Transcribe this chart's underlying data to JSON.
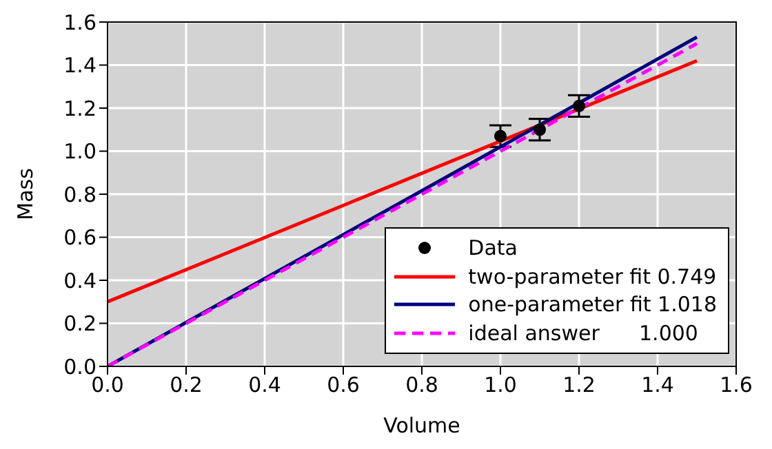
{
  "chart_data": {
    "type": "line",
    "xlabel": "Volume",
    "ylabel": "Mass",
    "xlim": [
      0,
      1.6
    ],
    "ylim": [
      0,
      1.6
    ],
    "xticks": [
      {
        "value": 0,
        "label": "0.0"
      },
      {
        "value": 0.2,
        "label": "0.2"
      },
      {
        "value": 0.4,
        "label": "0.4"
      },
      {
        "value": 0.6,
        "label": "0.6"
      },
      {
        "value": 0.8,
        "label": "0.8"
      },
      {
        "value": 1,
        "label": "1.0"
      },
      {
        "value": 1.2,
        "label": "1.2"
      },
      {
        "value": 1.4,
        "label": "1.4"
      },
      {
        "value": 1.6,
        "label": "1.6"
      }
    ],
    "yticks": [
      {
        "value": 0,
        "label": "0.0"
      },
      {
        "value": 0.2,
        "label": "0.2"
      },
      {
        "value": 0.4,
        "label": "0.4"
      },
      {
        "value": 0.6,
        "label": "0.6"
      },
      {
        "value": 0.8,
        "label": "0.8"
      },
      {
        "value": 1,
        "label": "1.0"
      },
      {
        "value": 1.2,
        "label": "1.2"
      },
      {
        "value": 1.4,
        "label": "1.4"
      },
      {
        "value": 1.6,
        "label": "1.6"
      }
    ],
    "grid": true,
    "legend": "bottom right",
    "series": [
      {
        "name": "Data",
        "type": "scatter",
        "color": "#000000",
        "marker": "circle",
        "x": [
          1.0,
          1.1,
          1.2
        ],
        "values": [
          1.07,
          1.1,
          1.21
        ],
        "errors": [
          0.05,
          0.05,
          0.05
        ]
      },
      {
        "name": "two-parameter fit 0.749",
        "type": "line",
        "color": "#ff0000",
        "line_style": "solid",
        "x": [
          0,
          1.5
        ],
        "values": [
          0.3,
          1.42
        ]
      },
      {
        "name": "one-parameter fit 1.018",
        "type": "line",
        "color": "#000080",
        "line_style": "solid",
        "x": [
          0,
          1.5
        ],
        "values": [
          0,
          1.53
        ]
      },
      {
        "name": "ideal answer      1.000",
        "type": "line",
        "color": "#ff00ff",
        "line_style": "dashed",
        "x": [
          0,
          1.5
        ],
        "values": [
          0,
          1.5
        ]
      }
    ]
  }
}
